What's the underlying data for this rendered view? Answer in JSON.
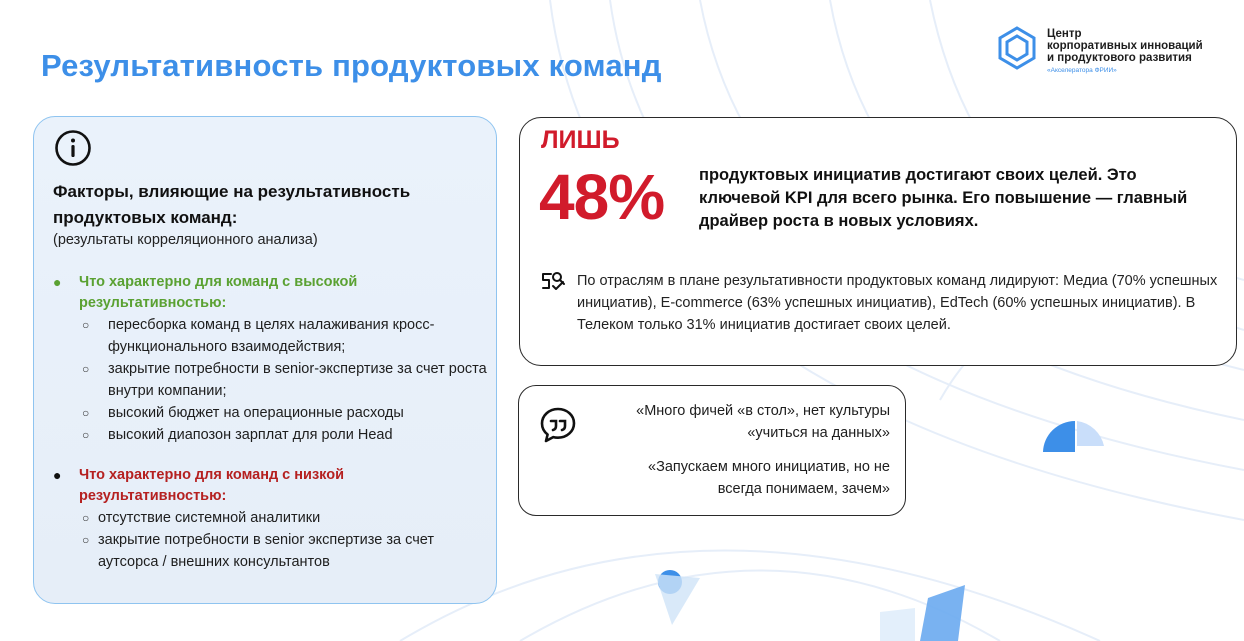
{
  "page": {
    "title": "Результативность продуктовых команд"
  },
  "logo": {
    "line1": "Центр",
    "line2": "корпоративных инноваций",
    "line3": "и продуктового развития",
    "sub": "«Акселератора ФРИИ»",
    "icon": "hexagon-logo-icon",
    "accent": "#3d8fe8"
  },
  "factors": {
    "icon": "info-icon",
    "title": "Факторы, влияющие на результативность продуктовых команд:",
    "subtitle": "(результаты корреляционного анализа)",
    "high": {
      "heading": "Что характерно для команд с высокой результативностью:",
      "color": "#5aa132",
      "items": [
        "пересборка команд в целях налаживания кросс-функционального взаимодействия;",
        "закрытие потребности в senior-экспертизе за счет роста внутри компании;",
        "высокий бюджет на операционные расходы",
        "высокий диапозон зарплат для роли Head"
      ]
    },
    "low": {
      "heading": "Что характерно для команд с низкой результативностью:",
      "color": "#b52020",
      "items": [
        "отсутствие системной аналитики",
        "закрытие потребности в senior экспертизе за счет аутсорса / внешних консультантов"
      ]
    }
  },
  "kpi": {
    "prefix": "ЛИШЬ",
    "percent": "48%",
    "text": "продуктовых инициатив достигают своих целей. Это ключевой KPI для всего рынка. Его повышение — главный драйвер роста в новых условиях.",
    "accent": "#d11b2b",
    "industry_icon": "industry-analytics-icon",
    "industry_text": "По отраслям в плане результативности продуктовых команд лидируют: Медиа (70% успешных инициатив), E-commerce (63% успешных инициатив), EdTech (60% успешных инициатив). В Телеком только 31% инициатив достигает своих целей."
  },
  "quotes": {
    "icon": "quote-icon",
    "items": [
      "«Много фичей «в стол», нет культуры «учиться на данных»",
      "«Запускаем много инициатив, но не всегда понимаем, зачем»"
    ]
  }
}
